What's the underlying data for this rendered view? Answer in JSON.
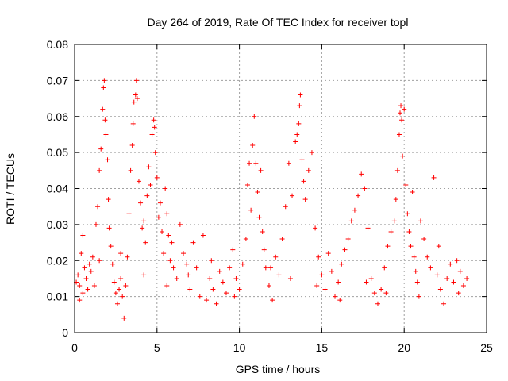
{
  "chart_data": {
    "type": "scatter",
    "title": "Day 264 of 2019, Rate Of TEC Index for receiver topl",
    "xlabel": "GPS time / hours",
    "ylabel": "ROTI / TECUs",
    "xlim": [
      0,
      25
    ],
    "ylim": [
      0,
      0.08
    ],
    "xticks": [
      0,
      5,
      10,
      15,
      20,
      25
    ],
    "xtick_labels": [
      "0",
      "5",
      "10",
      "15",
      "20",
      "25"
    ],
    "yticks": [
      0,
      0.01,
      0.02,
      0.03,
      0.04,
      0.05,
      0.06,
      0.07,
      0.08
    ],
    "ytick_labels": [
      "0",
      "0.01",
      "0.02",
      "0.03",
      "0.04",
      "0.05",
      "0.06",
      "0.07",
      "0.08"
    ],
    "grid": true,
    "marker": "plus",
    "color": "#ff0000",
    "series": [
      {
        "name": "ROTI",
        "points": [
          [
            0.1,
            0.014
          ],
          [
            0.2,
            0.016
          ],
          [
            0.3,
            0.013
          ],
          [
            0.4,
            0.022
          ],
          [
            0.5,
            0.027
          ],
          [
            0.5,
            0.011
          ],
          [
            0.6,
            0.018
          ],
          [
            0.7,
            0.015
          ],
          [
            0.8,
            0.012
          ],
          [
            0.9,
            0.019
          ],
          [
            1.0,
            0.017
          ],
          [
            1.1,
            0.021
          ],
          [
            1.2,
            0.013
          ],
          [
            1.3,
            0.03
          ],
          [
            1.4,
            0.035
          ],
          [
            1.5,
            0.045
          ],
          [
            1.6,
            0.051
          ],
          [
            1.7,
            0.062
          ],
          [
            1.75,
            0.068
          ],
          [
            1.8,
            0.07
          ],
          [
            1.85,
            0.059
          ],
          [
            1.9,
            0.055
          ],
          [
            2.0,
            0.048
          ],
          [
            2.05,
            0.037
          ],
          [
            2.1,
            0.029
          ],
          [
            2.2,
            0.024
          ],
          [
            2.3,
            0.019
          ],
          [
            2.4,
            0.014
          ],
          [
            2.5,
            0.011
          ],
          [
            2.6,
            0.008
          ],
          [
            2.7,
            0.012
          ],
          [
            2.8,
            0.015
          ],
          [
            2.9,
            0.01
          ],
          [
            3.0,
            0.004
          ],
          [
            3.1,
            0.013
          ],
          [
            3.2,
            0.021
          ],
          [
            3.3,
            0.033
          ],
          [
            3.4,
            0.045
          ],
          [
            3.5,
            0.052
          ],
          [
            3.55,
            0.058
          ],
          [
            3.6,
            0.064
          ],
          [
            3.7,
            0.066
          ],
          [
            3.75,
            0.07
          ],
          [
            3.8,
            0.065
          ],
          [
            3.9,
            0.042
          ],
          [
            4.0,
            0.036
          ],
          [
            4.1,
            0.029
          ],
          [
            4.2,
            0.031
          ],
          [
            4.3,
            0.025
          ],
          [
            4.4,
            0.038
          ],
          [
            4.5,
            0.046
          ],
          [
            4.6,
            0.041
          ],
          [
            4.7,
            0.055
          ],
          [
            4.8,
            0.059
          ],
          [
            4.85,
            0.057
          ],
          [
            4.9,
            0.05
          ],
          [
            5.0,
            0.043
          ],
          [
            5.1,
            0.032
          ],
          [
            5.2,
            0.036
          ],
          [
            5.3,
            0.028
          ],
          [
            5.4,
            0.022
          ],
          [
            5.5,
            0.04
          ],
          [
            5.6,
            0.033
          ],
          [
            5.7,
            0.027
          ],
          [
            5.8,
            0.02
          ],
          [
            5.9,
            0.025
          ],
          [
            6.0,
            0.018
          ],
          [
            6.2,
            0.015
          ],
          [
            6.4,
            0.03
          ],
          [
            6.6,
            0.022
          ],
          [
            6.8,
            0.019
          ],
          [
            7.0,
            0.012
          ],
          [
            7.2,
            0.025
          ],
          [
            7.4,
            0.018
          ],
          [
            7.6,
            0.01
          ],
          [
            7.8,
            0.027
          ],
          [
            8.0,
            0.009
          ],
          [
            8.2,
            0.015
          ],
          [
            8.4,
            0.012
          ],
          [
            8.6,
            0.008
          ],
          [
            8.8,
            0.017
          ],
          [
            9.0,
            0.014
          ],
          [
            9.2,
            0.011
          ],
          [
            9.4,
            0.018
          ],
          [
            9.6,
            0.023
          ],
          [
            9.8,
            0.015
          ],
          [
            10.0,
            0.012
          ],
          [
            10.2,
            0.019
          ],
          [
            10.4,
            0.026
          ],
          [
            10.5,
            0.041
          ],
          [
            10.6,
            0.047
          ],
          [
            10.7,
            0.034
          ],
          [
            10.8,
            0.052
          ],
          [
            10.9,
            0.06
          ],
          [
            11.0,
            0.047
          ],
          [
            11.1,
            0.039
          ],
          [
            11.2,
            0.032
          ],
          [
            11.3,
            0.045
          ],
          [
            11.4,
            0.028
          ],
          [
            11.5,
            0.023
          ],
          [
            11.6,
            0.018
          ],
          [
            11.8,
            0.013
          ],
          [
            12.0,
            0.009
          ],
          [
            12.2,
            0.021
          ],
          [
            12.4,
            0.016
          ],
          [
            12.6,
            0.026
          ],
          [
            12.8,
            0.035
          ],
          [
            13.0,
            0.047
          ],
          [
            13.2,
            0.038
          ],
          [
            13.4,
            0.053
          ],
          [
            13.5,
            0.055
          ],
          [
            13.6,
            0.058
          ],
          [
            13.65,
            0.063
          ],
          [
            13.7,
            0.066
          ],
          [
            13.8,
            0.048
          ],
          [
            13.9,
            0.042
          ],
          [
            14.0,
            0.037
          ],
          [
            14.2,
            0.045
          ],
          [
            14.4,
            0.05
          ],
          [
            14.6,
            0.029
          ],
          [
            14.8,
            0.021
          ],
          [
            15.0,
            0.016
          ],
          [
            15.2,
            0.012
          ],
          [
            15.4,
            0.022
          ],
          [
            15.6,
            0.017
          ],
          [
            15.8,
            0.01
          ],
          [
            16.0,
            0.014
          ],
          [
            16.2,
            0.019
          ],
          [
            16.4,
            0.023
          ],
          [
            16.6,
            0.026
          ],
          [
            16.8,
            0.031
          ],
          [
            17.0,
            0.034
          ],
          [
            17.2,
            0.038
          ],
          [
            17.4,
            0.044
          ],
          [
            17.6,
            0.04
          ],
          [
            17.8,
            0.029
          ],
          [
            18.0,
            0.015
          ],
          [
            18.2,
            0.011
          ],
          [
            18.4,
            0.008
          ],
          [
            18.6,
            0.012
          ],
          [
            18.8,
            0.018
          ],
          [
            19.0,
            0.024
          ],
          [
            19.2,
            0.028
          ],
          [
            19.4,
            0.031
          ],
          [
            19.5,
            0.037
          ],
          [
            19.6,
            0.045
          ],
          [
            19.7,
            0.055
          ],
          [
            19.75,
            0.061
          ],
          [
            19.8,
            0.063
          ],
          [
            19.85,
            0.059
          ],
          [
            19.9,
            0.049
          ],
          [
            20.0,
            0.062
          ],
          [
            20.1,
            0.041
          ],
          [
            20.2,
            0.033
          ],
          [
            20.3,
            0.028
          ],
          [
            20.4,
            0.024
          ],
          [
            20.5,
            0.039
          ],
          [
            20.6,
            0.021
          ],
          [
            20.7,
            0.017
          ],
          [
            20.8,
            0.014
          ],
          [
            21.0,
            0.031
          ],
          [
            21.2,
            0.026
          ],
          [
            21.4,
            0.021
          ],
          [
            21.6,
            0.018
          ],
          [
            21.8,
            0.043
          ],
          [
            22.0,
            0.016
          ],
          [
            22.2,
            0.012
          ],
          [
            22.4,
            0.008
          ],
          [
            22.6,
            0.015
          ],
          [
            22.8,
            0.019
          ],
          [
            23.0,
            0.014
          ],
          [
            23.2,
            0.02
          ],
          [
            23.4,
            0.017
          ],
          [
            23.6,
            0.013
          ],
          [
            23.8,
            0.015
          ],
          [
            0.3,
            0.009
          ],
          [
            1.5,
            0.02
          ],
          [
            2.8,
            0.022
          ],
          [
            4.2,
            0.016
          ],
          [
            5.6,
            0.013
          ],
          [
            6.9,
            0.016
          ],
          [
            8.3,
            0.02
          ],
          [
            9.7,
            0.01
          ],
          [
            11.9,
            0.018
          ],
          [
            13.1,
            0.015
          ],
          [
            14.7,
            0.013
          ],
          [
            16.1,
            0.009
          ],
          [
            17.7,
            0.014
          ],
          [
            18.9,
            0.011
          ],
          [
            20.9,
            0.01
          ],
          [
            22.1,
            0.024
          ],
          [
            23.3,
            0.011
          ]
        ]
      }
    ]
  }
}
